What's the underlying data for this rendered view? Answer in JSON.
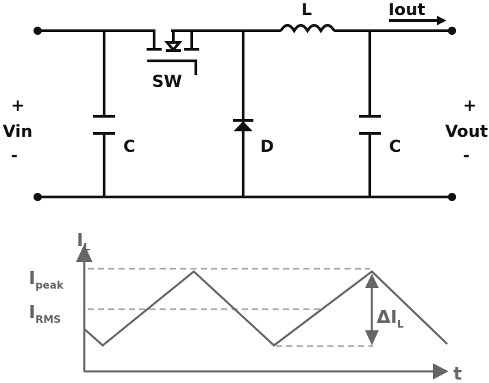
{
  "circuit": {
    "inductor_label": "L",
    "output_current_label": "Iout",
    "switch_label": "SW",
    "input_cap_label": "C",
    "output_cap_label": "C",
    "diode_label": "D",
    "vin": {
      "plus": "+",
      "label": "Vin",
      "minus": "-"
    },
    "vout": {
      "plus": "+",
      "label": "Vout",
      "minus": "-"
    }
  },
  "graph": {
    "y_axis": {
      "main": "I",
      "sub": "L"
    },
    "x_axis": "t",
    "peak": {
      "main": "I",
      "sub": "peak"
    },
    "rms": {
      "main": "I",
      "sub": "RMS"
    },
    "ripple": {
      "main": "ΔI",
      "sub": "L"
    },
    "colors": {
      "waveform": "#666666",
      "dashed": "#aaaaaa",
      "circuit": "#111111"
    }
  }
}
